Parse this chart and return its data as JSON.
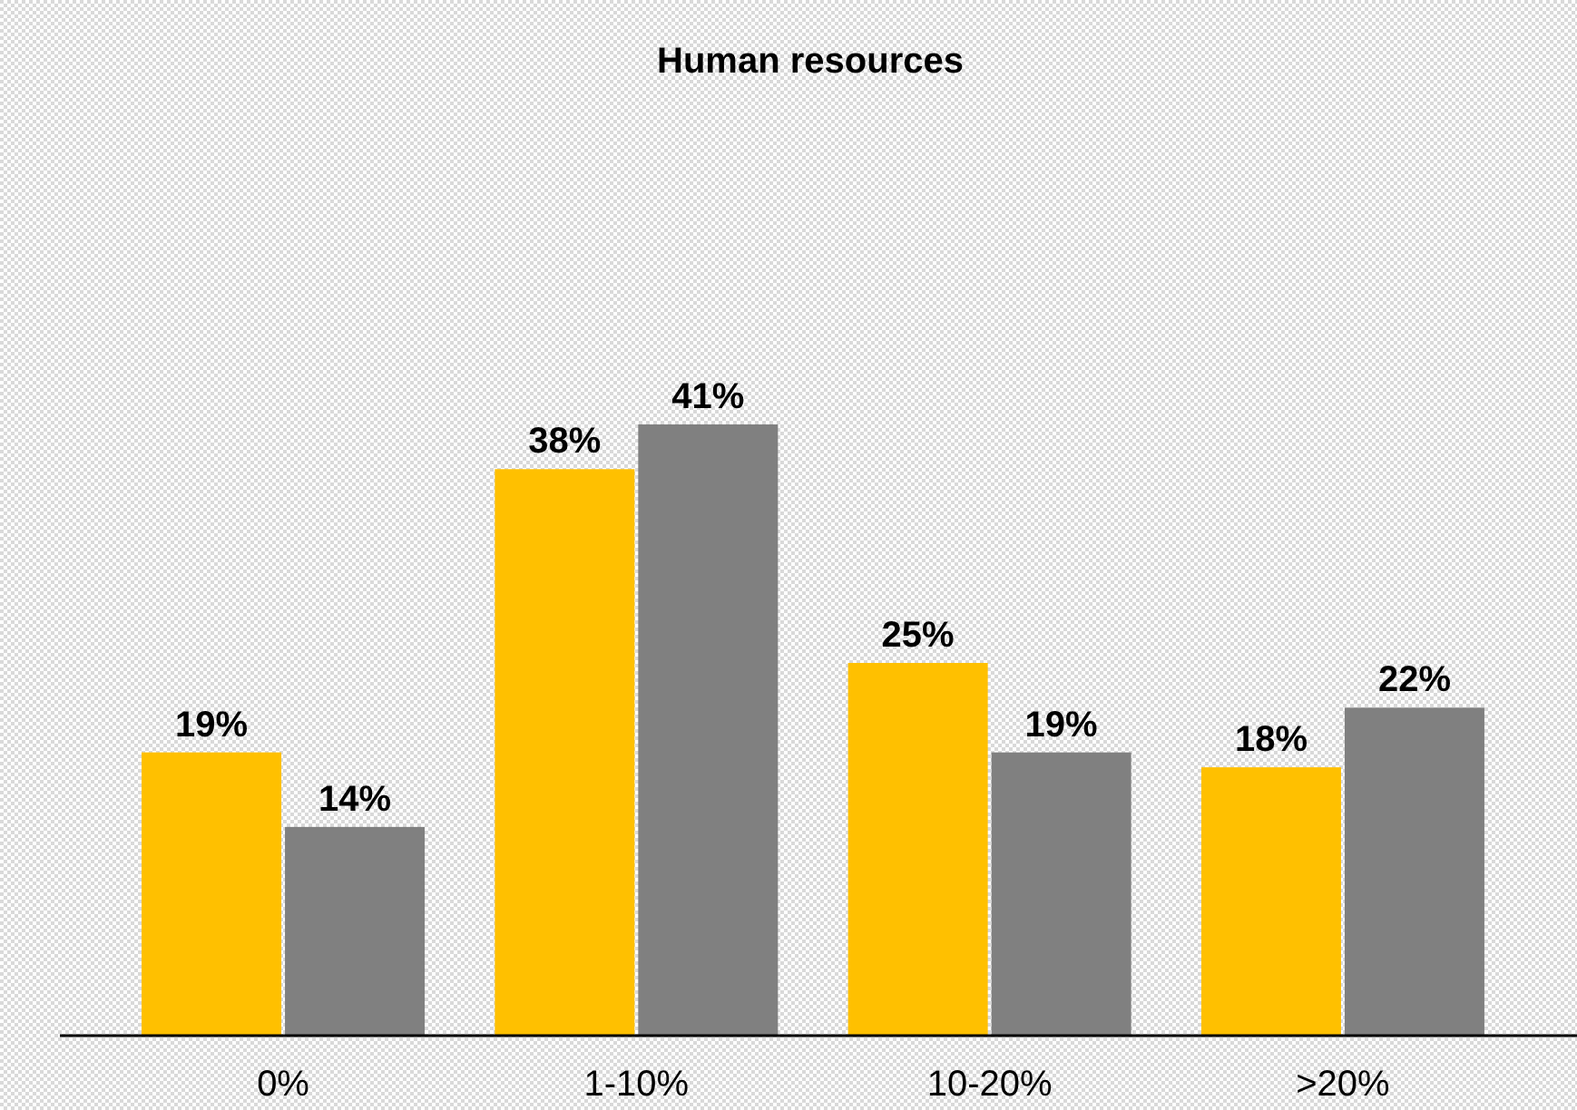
{
  "chart_data": {
    "type": "bar",
    "title": "Human resources",
    "categories": [
      "0%",
      "1-10%",
      "10-20%",
      ">20%"
    ],
    "series": [
      {
        "color": "#ffc000",
        "values": [
          19,
          38,
          25,
          18
        ],
        "value_labels": [
          "19%",
          "38%",
          "25%",
          "18%"
        ]
      },
      {
        "color": "#808080",
        "values": [
          14,
          41,
          19,
          22
        ],
        "value_labels": [
          "14%",
          "41%",
          "19%",
          "22%"
        ]
      }
    ]
  }
}
